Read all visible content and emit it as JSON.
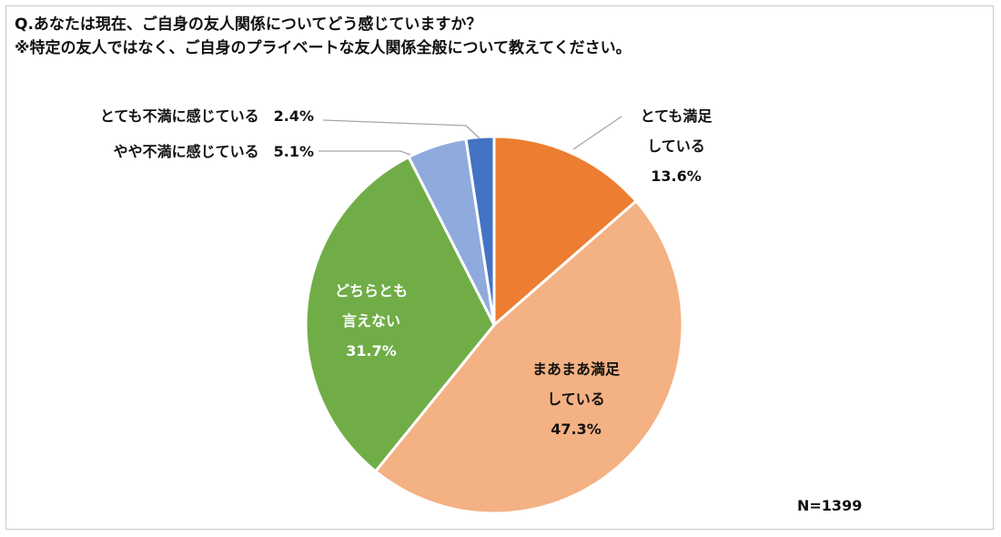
{
  "chart_data": {
    "type": "pie",
    "title": "Q.あなたは現在、ご自身の友人関係についてどう感じていますか？",
    "subtitle": "※特定の友人ではなく、ご自身のプライベートな友人関係全般について教えてください。",
    "note": "N=1399",
    "slices": [
      {
        "label": "とても満足している",
        "label_lines": [
          "とても満足",
          "している"
        ],
        "value": 13.6,
        "value_label": "13.6%",
        "color": "#ED7D31",
        "text_color": "#111111"
      },
      {
        "label": "まあまあ満足している",
        "label_lines": [
          "まあまあ満足",
          "している"
        ],
        "value": 47.3,
        "value_label": "47.3%",
        "color": "#F4B183",
        "text_color": "#111111"
      },
      {
        "label": "どちらとも言えない",
        "label_lines": [
          "どちらとも",
          "言えない"
        ],
        "value": 31.7,
        "value_label": "31.7%",
        "color": "#70AD47",
        "text_color": "#ffffff"
      },
      {
        "label": "やや不満に感じている",
        "label_lines": [
          "やや不満に感じている"
        ],
        "value": 5.1,
        "value_label": "5.1%",
        "color": "#8FAADC",
        "text_color": "#111111"
      },
      {
        "label": "とても不満に感じている",
        "label_lines": [
          "とても不満に感じている"
        ],
        "value": 2.4,
        "value_label": "2.4%",
        "color": "#4472C4",
        "text_color": "#111111"
      }
    ]
  }
}
